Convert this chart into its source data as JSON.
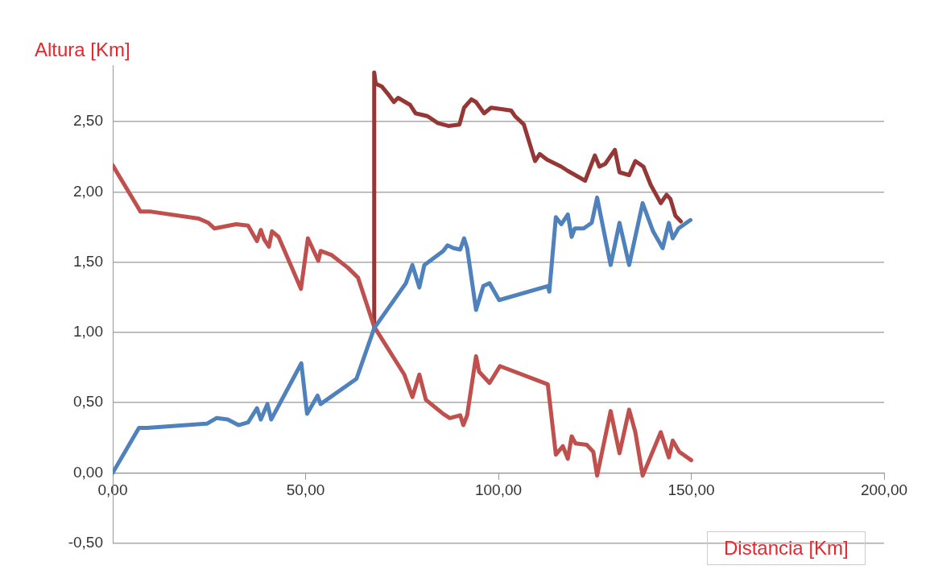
{
  "chart_data": {
    "type": "line",
    "xlabel": "Distancia [Km]",
    "ylabel": "Altura [Km]",
    "series": [
      {
        "color": "#4f81bd",
        "x": [
          0,
          6.8,
          8.9,
          24.4,
          26.9,
          29.8,
          32.6,
          35.1,
          37.4,
          38.4,
          40.1,
          41.1,
          48.9,
          50.4,
          53.1,
          53.9,
          63.2,
          67.8,
          76.0,
          77.7,
          79.5,
          80.8,
          85.7,
          86.8,
          88.4,
          90.1,
          91.1,
          91.9,
          94.2,
          96.1,
          97.7,
          100.2,
          112.8,
          113.2,
          114.9,
          116.3,
          118.0,
          119.0,
          119.8,
          122.1,
          124.2,
          125.6,
          129.1,
          131.4,
          133.9,
          137.4,
          140.1,
          142.6,
          144.2,
          145.2,
          146.7,
          149.8
        ],
        "values": [
          0,
          0.32,
          0.32,
          0.35,
          0.39,
          0.38,
          0.34,
          0.36,
          0.46,
          0.38,
          0.49,
          0.38,
          0.78,
          0.42,
          0.55,
          0.49,
          0.67,
          1.03,
          1.35,
          1.48,
          1.32,
          1.48,
          1.58,
          1.62,
          1.6,
          1.59,
          1.67,
          1.6,
          1.16,
          1.33,
          1.35,
          1.23,
          1.33,
          1.29,
          1.82,
          1.77,
          1.84,
          1.68,
          1.74,
          1.74,
          1.78,
          1.96,
          1.48,
          1.78,
          1.48,
          1.92,
          1.72,
          1.6,
          1.78,
          1.67,
          1.74,
          1.8
        ]
      },
      {
        "color": "#c0504d",
        "x": [
          0,
          7.2,
          9.9,
          22.3,
          24.8,
          26.4,
          32.0,
          35.1,
          37.4,
          38.4,
          39.3,
          40.5,
          41.3,
          43.0,
          48.8,
          50.6,
          53.3,
          53.9,
          56.8,
          61.0,
          63.6,
          67.8,
          75.6,
          77.7,
          79.5,
          81.2,
          85.7,
          87.4,
          90.1,
          90.9,
          91.9,
          94.2,
          95.0,
          97.7,
          100.4,
          112.8,
          114.9,
          116.7,
          118.0,
          119.0,
          120.0,
          122.9,
          124.6,
          125.6,
          129.1,
          131.4,
          133.9,
          135.5,
          137.4,
          142.1,
          144.2,
          145.2,
          146.9,
          150.0
        ],
        "values": [
          2.19,
          1.86,
          1.86,
          1.81,
          1.78,
          1.74,
          1.77,
          1.76,
          1.65,
          1.73,
          1.66,
          1.61,
          1.72,
          1.68,
          1.31,
          1.67,
          1.51,
          1.58,
          1.55,
          1.46,
          1.39,
          1.04,
          0.7,
          0.54,
          0.7,
          0.52,
          0.42,
          0.39,
          0.41,
          0.34,
          0.41,
          0.83,
          0.72,
          0.64,
          0.76,
          0.63,
          0.13,
          0.19,
          0.1,
          0.26,
          0.21,
          0.2,
          0.15,
          -0.02,
          0.44,
          0.14,
          0.45,
          0.29,
          -0.02,
          0.29,
          0.11,
          0.23,
          0.15,
          0.09
        ]
      },
      {
        "color": "#953735",
        "x": [
          67.8,
          67.8,
          68.2,
          69.8,
          71.3,
          72.9,
          74.0,
          77.1,
          78.5,
          81.6,
          84.3,
          87.0,
          89.9,
          91.1,
          93.0,
          94.2,
          96.3,
          98.1,
          103.3,
          104.3,
          106.6,
          109.5,
          110.7,
          112.6,
          116.3,
          118.0,
          122.5,
          125.0,
          126.2,
          127.7,
          130.2,
          131.4,
          133.9,
          135.5,
          137.6,
          139.5,
          142.1,
          143.6,
          144.6,
          145.9,
          147.3
        ],
        "values": [
          1.04,
          2.85,
          2.77,
          2.75,
          2.7,
          2.64,
          2.67,
          2.62,
          2.56,
          2.54,
          2.49,
          2.47,
          2.48,
          2.6,
          2.66,
          2.64,
          2.56,
          2.6,
          2.58,
          2.54,
          2.48,
          2.22,
          2.27,
          2.23,
          2.18,
          2.15,
          2.08,
          2.26,
          2.18,
          2.2,
          2.3,
          2.14,
          2.12,
          2.22,
          2.18,
          2.05,
          1.92,
          1.98,
          1.95,
          1.83,
          1.79
        ]
      }
    ],
    "xlim": [
      0,
      200
    ],
    "xticks": [
      {
        "value": 0,
        "label": "0,00"
      },
      {
        "value": 50,
        "label": "50,00"
      },
      {
        "value": 100,
        "label": "100,00"
      },
      {
        "value": 150,
        "label": "150,00"
      },
      {
        "value": 200,
        "label": "200,00"
      }
    ],
    "ylim": [
      -0.5,
      2.9
    ],
    "yticks": [
      {
        "value": -0.5,
        "label": "-0,50"
      },
      {
        "value": 0,
        "label": "0,00"
      },
      {
        "value": 0.5,
        "label": "0,50"
      },
      {
        "value": 1,
        "label": "1,00"
      },
      {
        "value": 1.5,
        "label": "1,50"
      },
      {
        "value": 2,
        "label": "2,00"
      },
      {
        "value": 2.5,
        "label": "2,50"
      }
    ],
    "grid": "y",
    "legend": false,
    "marker": "none",
    "line_style": "solid"
  }
}
